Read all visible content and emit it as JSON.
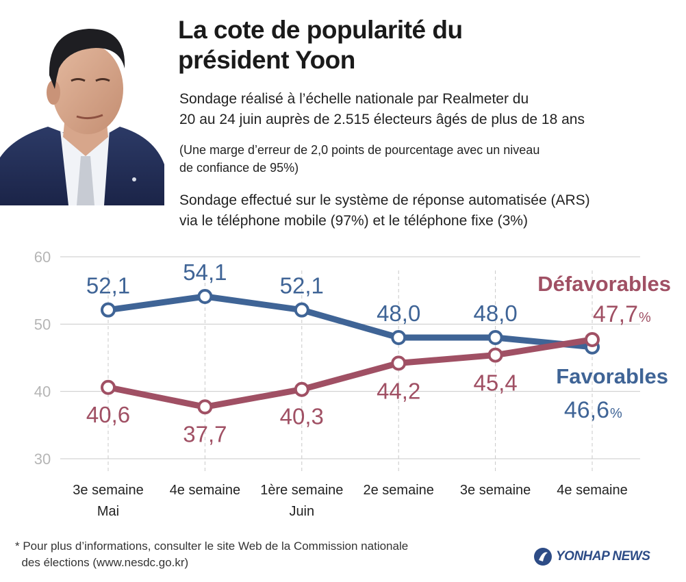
{
  "header": {
    "title_lines": [
      "La cote de popularité du",
      "président Yoon"
    ]
  },
  "description": {
    "survey_lines": [
      "Sondage réalisé à l’échelle nationale par Realmeter du",
      "20 au 24 juin auprès de 2.515 électeurs âgés de plus de 18 ans"
    ],
    "margin_lines": [
      "(Une marge d’erreur de 2,0 points de pourcentage avec un niveau",
      "de confiance de 95%)"
    ],
    "method_lines": [
      "Sondage effectué sur le système de réponse automatisée (ARS)",
      "via le téléphone mobile (97%) et le téléphone fixe (3%)"
    ]
  },
  "chart_data": {
    "type": "line",
    "categories": [
      "3e semaine Mai",
      "4e semaine",
      "1ère semaine Juin",
      "2e semaine",
      "3e semaine",
      "4e semaine"
    ],
    "category_lines": [
      [
        "3e semaine",
        "Mai"
      ],
      [
        "4e semaine"
      ],
      [
        "1ère semaine",
        "Juin"
      ],
      [
        "2e semaine"
      ],
      [
        "3e semaine"
      ],
      [
        "4e semaine"
      ]
    ],
    "ylim": [
      30,
      60
    ],
    "yticks": [
      "30",
      "40",
      "50",
      "60"
    ],
    "grid": true,
    "series": [
      {
        "name": "Favorables",
        "values": [
          52.1,
          54.1,
          52.1,
          48.0,
          48.0,
          46.6
        ],
        "labels": [
          "52,1",
          "54,1",
          "52,1",
          "48,0",
          "48,0",
          "46,6"
        ],
        "color": "#3f6496"
      },
      {
        "name": "Défavorables",
        "values": [
          40.6,
          37.7,
          40.3,
          44.2,
          45.4,
          47.7
        ],
        "labels": [
          "40,6",
          "37,7",
          "40,3",
          "44,2",
          "45,4",
          "47,7"
        ],
        "color": "#a05064"
      }
    ],
    "unit": "%"
  },
  "footnote": {
    "lines": [
      "* Pour plus d’informations, consulter le site Web de la Commission nationale",
      "  des élections (www.nesdc.go.kr)"
    ]
  },
  "logo": {
    "text": "YONHAP NEWS"
  },
  "photo": {
    "icon": "portrait-photo"
  }
}
